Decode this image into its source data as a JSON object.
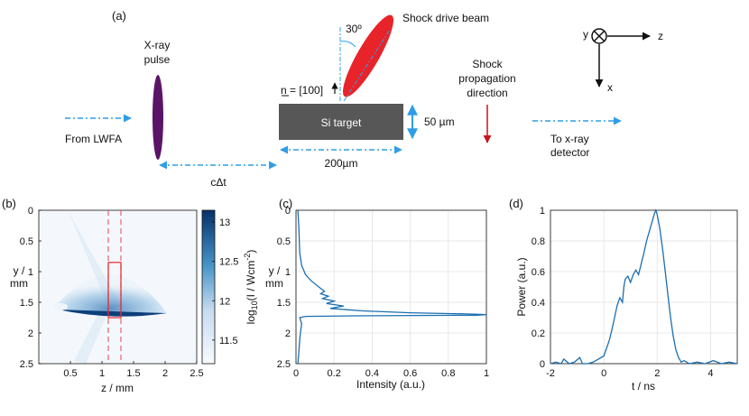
{
  "panel_a": {
    "label": "(a)",
    "xray_title_line1": "X-ray",
    "xray_title_line2": "pulse",
    "from_lwfa": "From LWFA",
    "c_delta_t": "cΔt",
    "angle": "30º",
    "shock_beam": "Shock drive beam",
    "normal": "n = [100]",
    "si_target": "Si target",
    "thickness": "50 µm",
    "width": "200µm",
    "shock_dir_line1": "Shock",
    "shock_dir_line2": "propagation",
    "shock_dir_line3": "direction",
    "to_detector_line1": "To x-ray",
    "to_detector_line2": "detector",
    "axis_y": "y",
    "axis_z": "z",
    "axis_x": "x"
  },
  "colors": {
    "arrow_blue": "#2f9ee6",
    "target_gray": "#575757",
    "beam_red": "#e8232a",
    "pulse_purple": "#5a1466",
    "shock_arrow_red": "#c8141e",
    "line_blue": "#1b6fb0"
  },
  "chart_data": [
    {
      "id": "b",
      "type": "heatmap",
      "panel_label": "(b)",
      "xlabel": "z / mm",
      "ylabel_line1": "y /",
      "ylabel_line2": "mm",
      "xlim": [
        0,
        2.5
      ],
      "ylim": [
        0,
        2.5
      ],
      "xticks": [
        0.5,
        1,
        1.5,
        2,
        2.5
      ],
      "yticks": [
        0,
        0.5,
        1,
        1.5,
        2,
        2.5
      ],
      "colorbar_ticks": [
        11.5,
        12,
        12.5,
        13
      ],
      "colorbar_range": [
        11.2,
        13.15
      ],
      "colorbar_label": "log10(I / Wcm-2)",
      "dashed_lines_z": [
        1.1,
        1.3
      ],
      "roi_box": {
        "z0": 1.1,
        "z1": 1.3,
        "y0": 0.85,
        "y1": 1.75
      }
    },
    {
      "id": "c",
      "type": "line",
      "panel_label": "(c)",
      "xlabel": "Intensity (a.u.)",
      "ylabel_line1": "y /",
      "ylabel_line2": "mm",
      "xlim": [
        0,
        1
      ],
      "ylim": [
        0,
        2.5
      ],
      "xticks": [
        "0",
        "0.2",
        "0.4",
        "0.6",
        "0.8",
        "1"
      ],
      "yticks": [
        "0",
        "0.5",
        "1",
        "1.5",
        "2",
        "2.5"
      ],
      "grid": true,
      "x": [
        0.01,
        0.015,
        0.02,
        0.03,
        0.05,
        0.08,
        0.12,
        0.15,
        0.13,
        0.17,
        0.14,
        0.2,
        0.16,
        0.25,
        0.18,
        0.35,
        0.6,
        0.9,
        1.0,
        0.95,
        0.3,
        0.05,
        0.02,
        0.03,
        0.025,
        0.02,
        0.015,
        0.01
      ],
      "y": [
        0.0,
        0.3,
        0.7,
        0.9,
        1.05,
        1.15,
        1.25,
        1.32,
        1.36,
        1.4,
        1.44,
        1.48,
        1.52,
        1.56,
        1.6,
        1.64,
        1.67,
        1.69,
        1.7,
        1.71,
        1.72,
        1.73,
        1.75,
        1.85,
        1.95,
        2.1,
        2.3,
        2.5
      ]
    },
    {
      "id": "d",
      "type": "line",
      "panel_label": "(d)",
      "xlabel": "t / ns",
      "ylabel": "Power (a.u.)",
      "xlim": [
        -2,
        5
      ],
      "ylim": [
        0,
        1
      ],
      "xticks": [
        "-2",
        "0",
        "2",
        "4"
      ],
      "yticks": [
        "0",
        "0.2",
        "0.4",
        "0.6",
        "0.8",
        "1"
      ],
      "grid": true,
      "x": [
        -2.0,
        -1.8,
        -1.6,
        -1.5,
        -1.3,
        -1.1,
        -0.9,
        -0.8,
        -0.6,
        -0.4,
        -0.2,
        0.0,
        0.1,
        0.2,
        0.3,
        0.4,
        0.5,
        0.6,
        0.7,
        0.75,
        0.8,
        0.9,
        1.0,
        1.1,
        1.2,
        1.3,
        1.4,
        1.5,
        1.6,
        1.7,
        1.8,
        1.9,
        1.95,
        2.0,
        2.1,
        2.2,
        2.3,
        2.4,
        2.5,
        2.6,
        2.7,
        2.8,
        2.9,
        3.0,
        3.2,
        3.5,
        3.8,
        4.1,
        4.4,
        4.7,
        5.0
      ],
      "y": [
        0.0,
        0.01,
        0.0,
        0.03,
        0.0,
        0.01,
        0.04,
        0.0,
        0.0,
        0.01,
        0.03,
        0.05,
        0.1,
        0.15,
        0.22,
        0.3,
        0.38,
        0.43,
        0.4,
        0.5,
        0.55,
        0.57,
        0.53,
        0.58,
        0.61,
        0.58,
        0.65,
        0.72,
        0.8,
        0.86,
        0.92,
        0.98,
        1.0,
        0.97,
        0.88,
        0.75,
        0.6,
        0.45,
        0.3,
        0.18,
        0.09,
        0.04,
        0.01,
        0.02,
        0.0,
        0.01,
        0.0,
        0.02,
        0.0,
        0.01,
        0.0
      ]
    }
  ]
}
